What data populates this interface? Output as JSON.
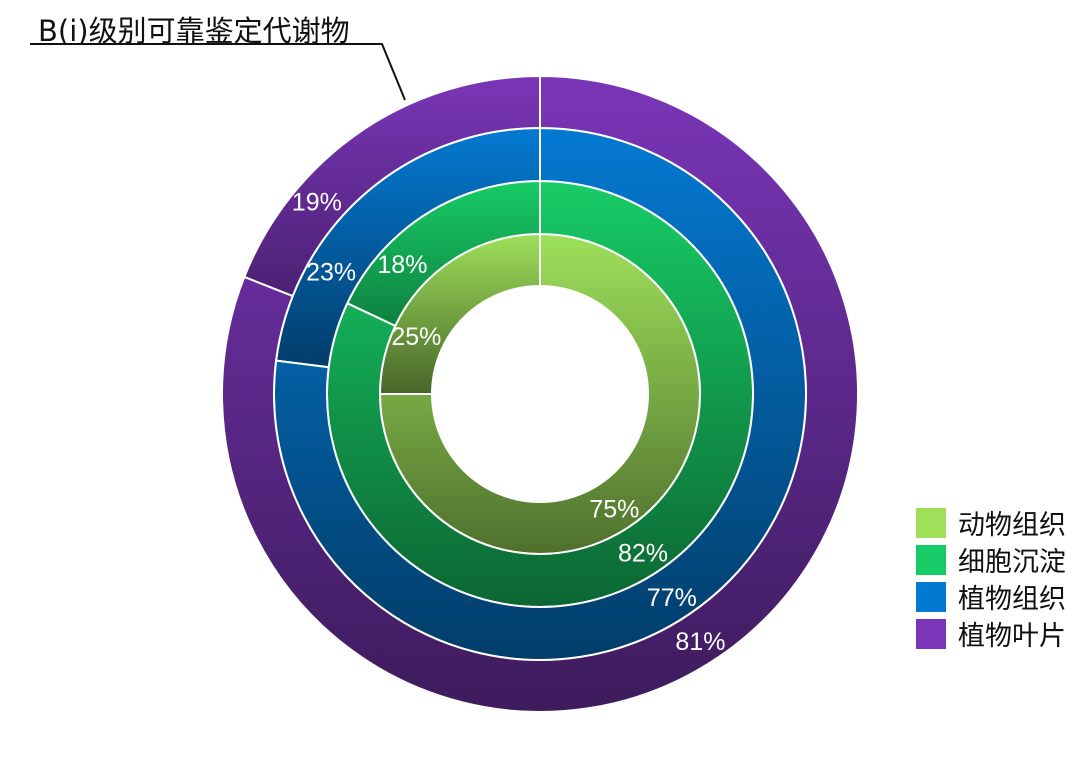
{
  "chart_data": {
    "type": "donut",
    "title": "B(i)级别可靠鉴定代谢物",
    "series": [
      {
        "name": "动物组织",
        "color": "#9ee05a",
        "values": [
          25,
          75
        ],
        "labels": [
          "25%",
          "75%"
        ]
      },
      {
        "name": "细胞沉淀",
        "color": "#17cc66",
        "values": [
          18,
          82
        ],
        "labels": [
          "18%",
          "82%"
        ]
      },
      {
        "name": "植物组织",
        "color": "#0479d2",
        "values": [
          23,
          77
        ],
        "labels": [
          "23%",
          "77%"
        ]
      },
      {
        "name": "植物叶片",
        "color": "#7a35b8",
        "values": [
          19,
          81
        ],
        "labels": [
          "19%",
          "81%"
        ]
      }
    ],
    "legend": {
      "position": "right"
    }
  }
}
